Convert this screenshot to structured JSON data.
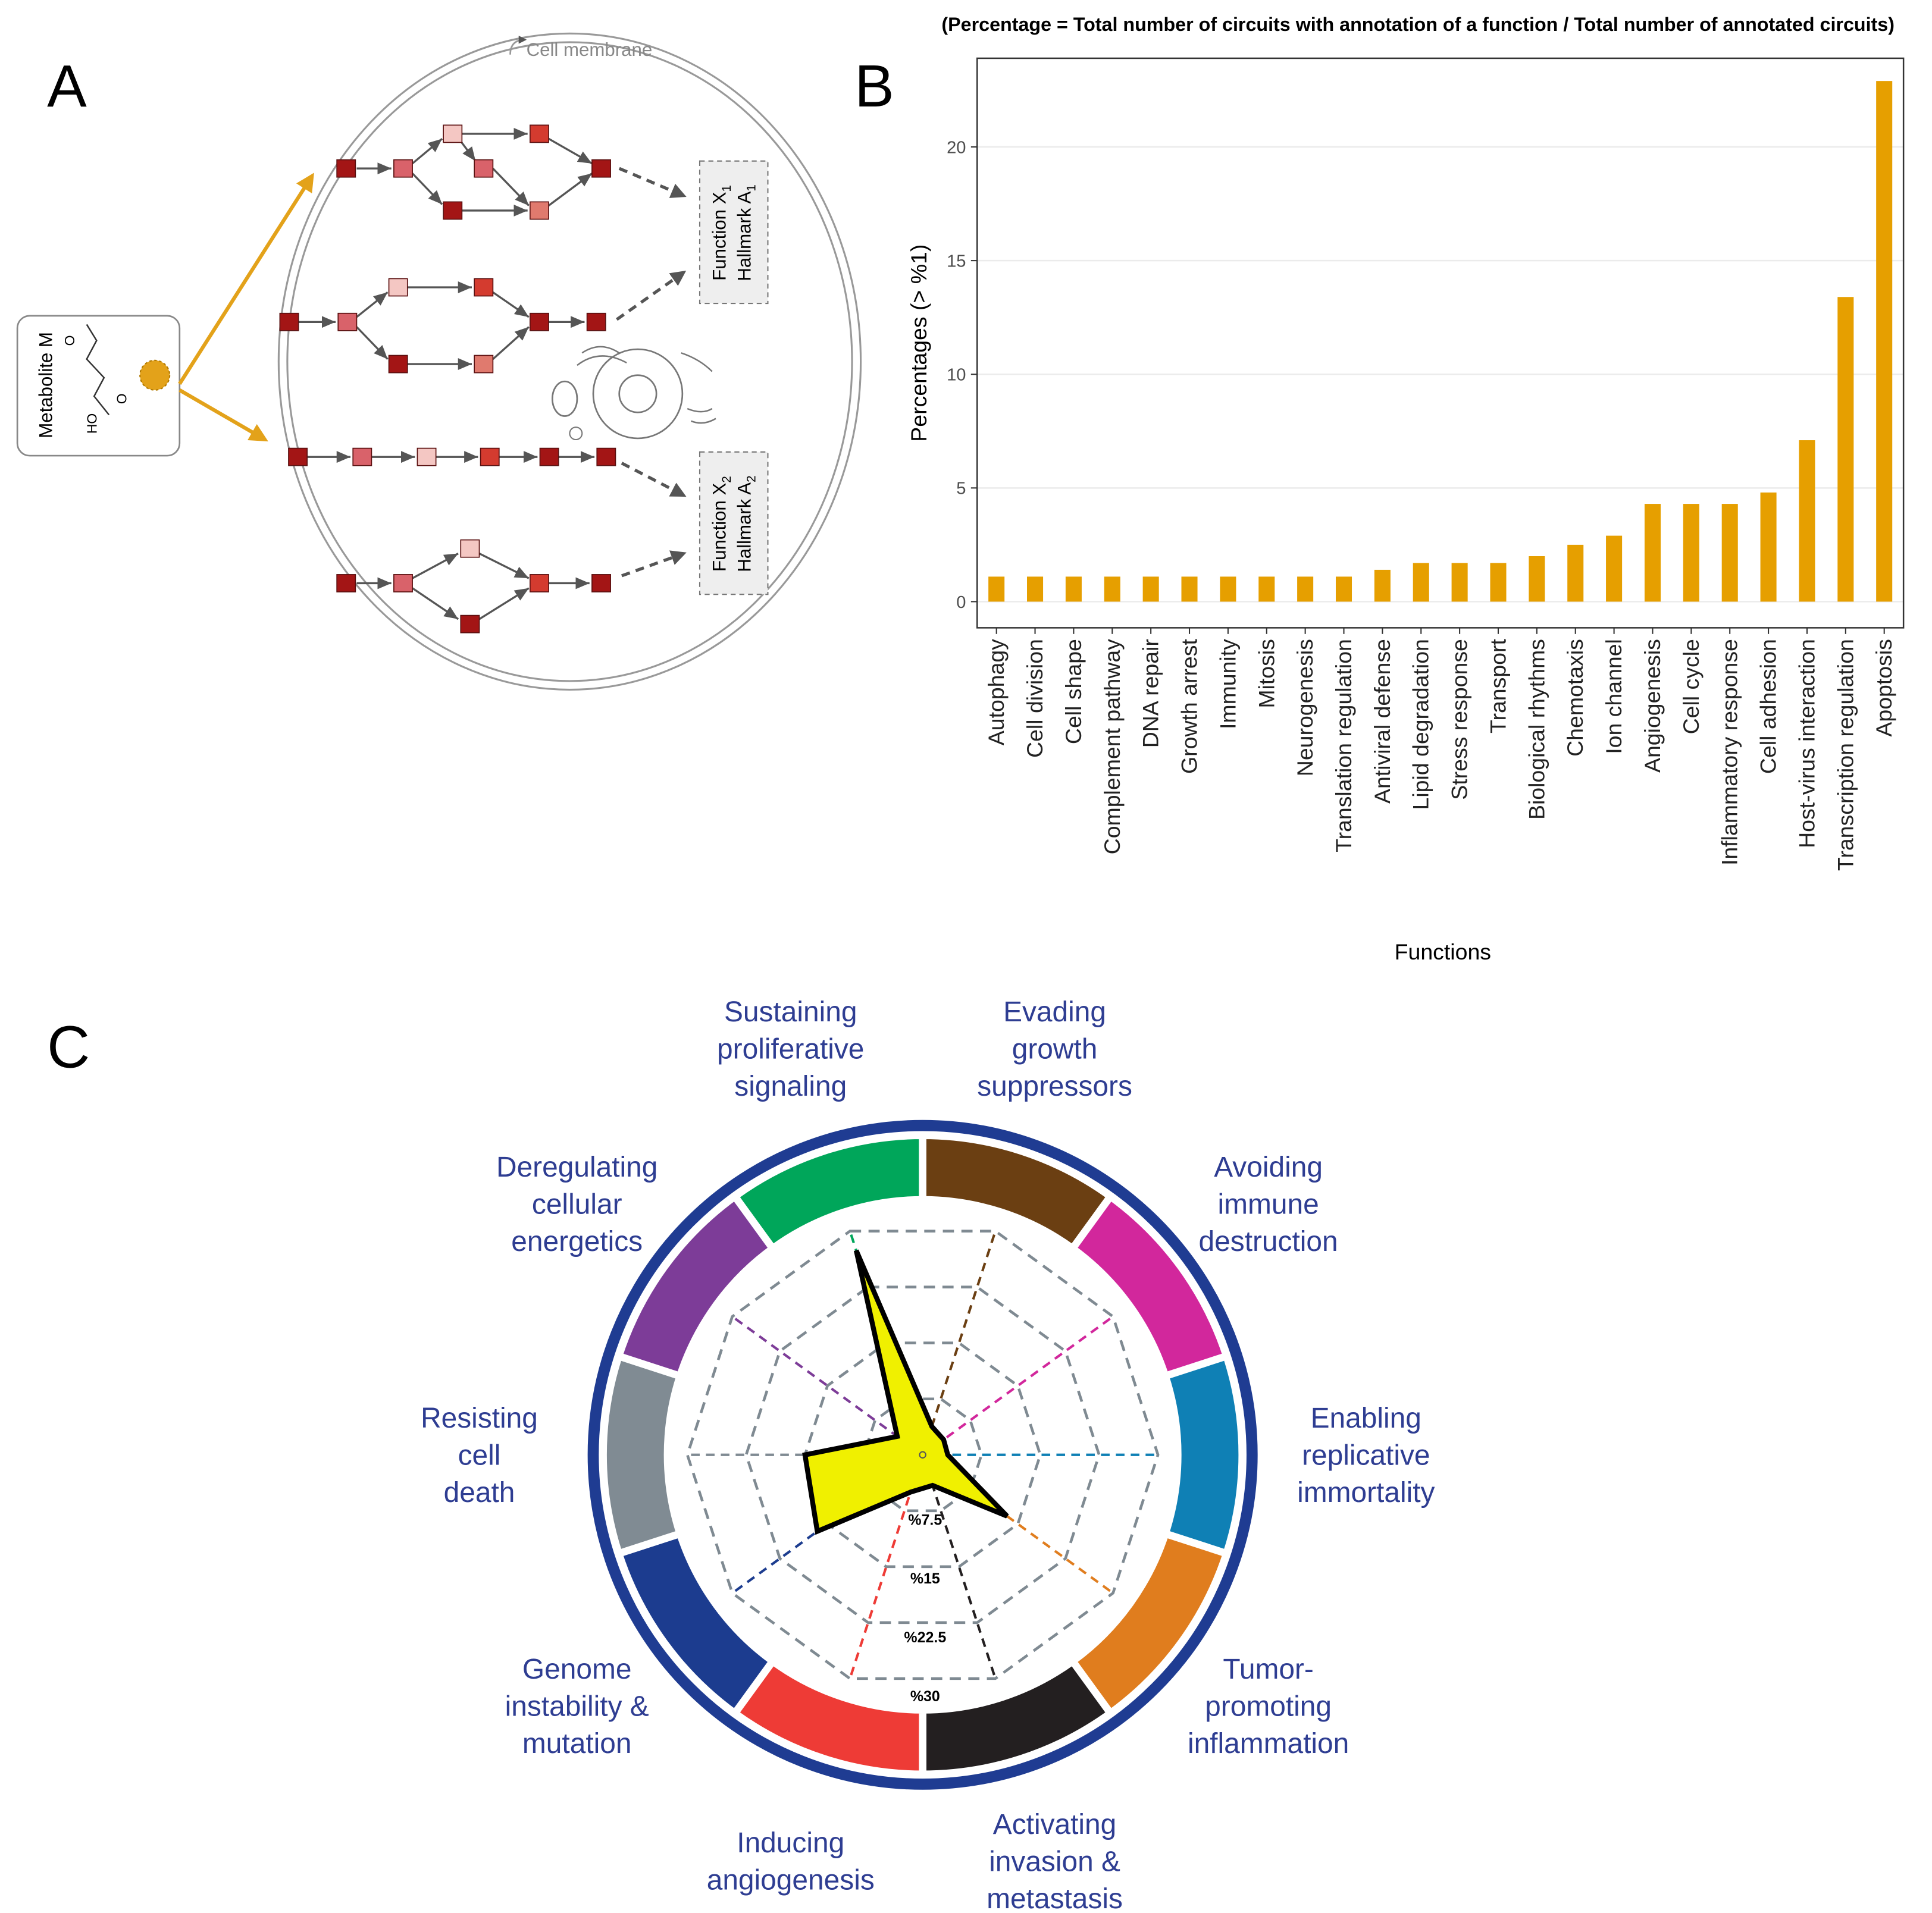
{
  "panel_labels": [
    "A",
    "B",
    "C"
  ],
  "diagram": {
    "membrane_label": "Cell membrane",
    "metabolite_label": "Metabolite M",
    "atoms": [
      "O",
      "HO",
      "O"
    ],
    "functions": [
      {
        "function": "Function X",
        "index": "1",
        "hallmark": "Hallmark A"
      },
      {
        "function": "Function X",
        "index": "2",
        "hallmark": "Hallmark A"
      }
    ]
  },
  "chart_data": [
    {
      "type": "bar",
      "title": "(Percentage = Total number of circuits with annotation of a function  / Total number of annotated circuits)",
      "x_label": "Functions",
      "y_label": "Percentages (> %1)",
      "categories": [
        "Autophagy",
        "Cell division",
        "Cell shape",
        "Complement pathway",
        "DNA repair",
        "Growth arrest",
        "Immunity",
        "Mitosis",
        "Neurogenesis",
        "Translation regulation",
        "Antiviral defense",
        "Lipid degradation",
        "Stress response",
        "Transport",
        "Biological rhythms",
        "Chemotaxis",
        "Ion channel",
        "Angiogenesis",
        "Cell cycle",
        "Inflammatory response",
        "Cell adhesion",
        "Host-virus interaction",
        "Transcription regulation",
        "Apoptosis"
      ],
      "values": [
        1.1,
        1.1,
        1.1,
        1.1,
        1.1,
        1.1,
        1.1,
        1.1,
        1.1,
        1.1,
        1.4,
        1.7,
        1.7,
        1.7,
        2.0,
        2.5,
        2.9,
        4.3,
        4.3,
        4.3,
        4.8,
        7.1,
        13.4,
        22.9
      ],
      "color": "#e69f00",
      "ylim": [
        -1.15,
        23.9
      ],
      "yticks": [
        0,
        5,
        10,
        15,
        20
      ],
      "grid": true
    },
    {
      "type": "radar",
      "categories": [
        [
          "Sustaining",
          "proliferative",
          "signaling"
        ],
        [
          "Evading",
          "growth",
          "suppressors"
        ],
        [
          "Avoiding",
          "immune",
          "destruction"
        ],
        [
          "Enabling",
          "replicative",
          "immortality"
        ],
        [
          "Tumor-",
          "promoting",
          "inflammation"
        ],
        [
          "Activating",
          "invasion &",
          "metastasis"
        ],
        [
          "Inducing",
          "angiogenesis"
        ],
        [
          "Genome",
          "instability &",
          "mutation"
        ],
        [
          "Resisting",
          "cell",
          "death"
        ],
        [
          "Deregulating",
          "cellular",
          "energetics"
        ]
      ],
      "colors": [
        "#00a65a",
        "#6b3f12",
        "#d2279c",
        "#0f80b5",
        "#e07d1e",
        "#231f20",
        "#ee3b36",
        "#1c3c8f",
        "#808b93",
        "#7d3c98"
      ],
      "values": [
        27.4,
        3.8,
        3.3,
        3.2,
        13.3,
        4.1,
        5.0,
        16.6,
        15.0,
        4.0
      ],
      "fill": "#f0f000",
      "rlim": [
        0,
        30
      ],
      "rticks": [
        {
          "value": 7.5,
          "label": "%7.5"
        },
        {
          "value": 15,
          "label": "%15"
        },
        {
          "value": 22.5,
          "label": "%22.5"
        },
        {
          "value": 30,
          "label": "%30"
        }
      ]
    }
  ]
}
